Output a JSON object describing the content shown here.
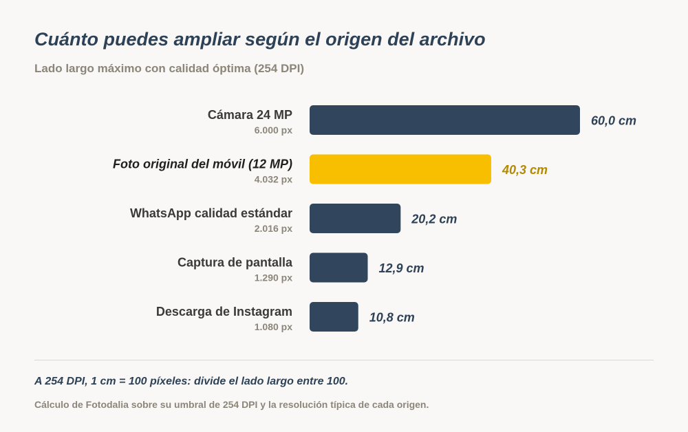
{
  "header": {
    "title": "Cuánto puedes ampliar según el origen del archivo",
    "subtitle": "Lado largo máximo con calidad óptima (254 DPI)"
  },
  "footer": {
    "note": "A 254 DPI, 1 cm = 100 píxeles: divide el lado largo entre 100.",
    "source": "Cálculo de Fotodalia sobre su umbral de 254 DPI y la resolución típica de cada origen."
  },
  "colors": {
    "bar_default": "#31465c",
    "bar_highlight": "#f7bf00",
    "value_default": "#2e4257",
    "value_highlight": "#b38a00",
    "label_primary": "#3a3a3a",
    "label_highlight": "#1f1f1f",
    "label_secondary": "#8c8579"
  },
  "chart_data": {
    "type": "bar",
    "orientation": "horizontal",
    "unit": "cm",
    "xlim": [
      0,
      60
    ],
    "categories": [
      "Cámara 24 MP",
      "Foto original del móvil (12 MP)",
      "WhatsApp calidad estándar",
      "Captura de pantalla",
      "Descarga de Instagram"
    ],
    "sublabels": [
      "6.000 px",
      "4.032 px",
      "2.016 px",
      "1.290 px",
      "1.080 px"
    ],
    "values": [
      60.0,
      40.3,
      20.2,
      12.9,
      10.8
    ],
    "value_labels": [
      "60,0 cm",
      "40,3 cm",
      "20,2 cm",
      "12,9 cm",
      "10,8 cm"
    ],
    "highlight_index": 1
  }
}
